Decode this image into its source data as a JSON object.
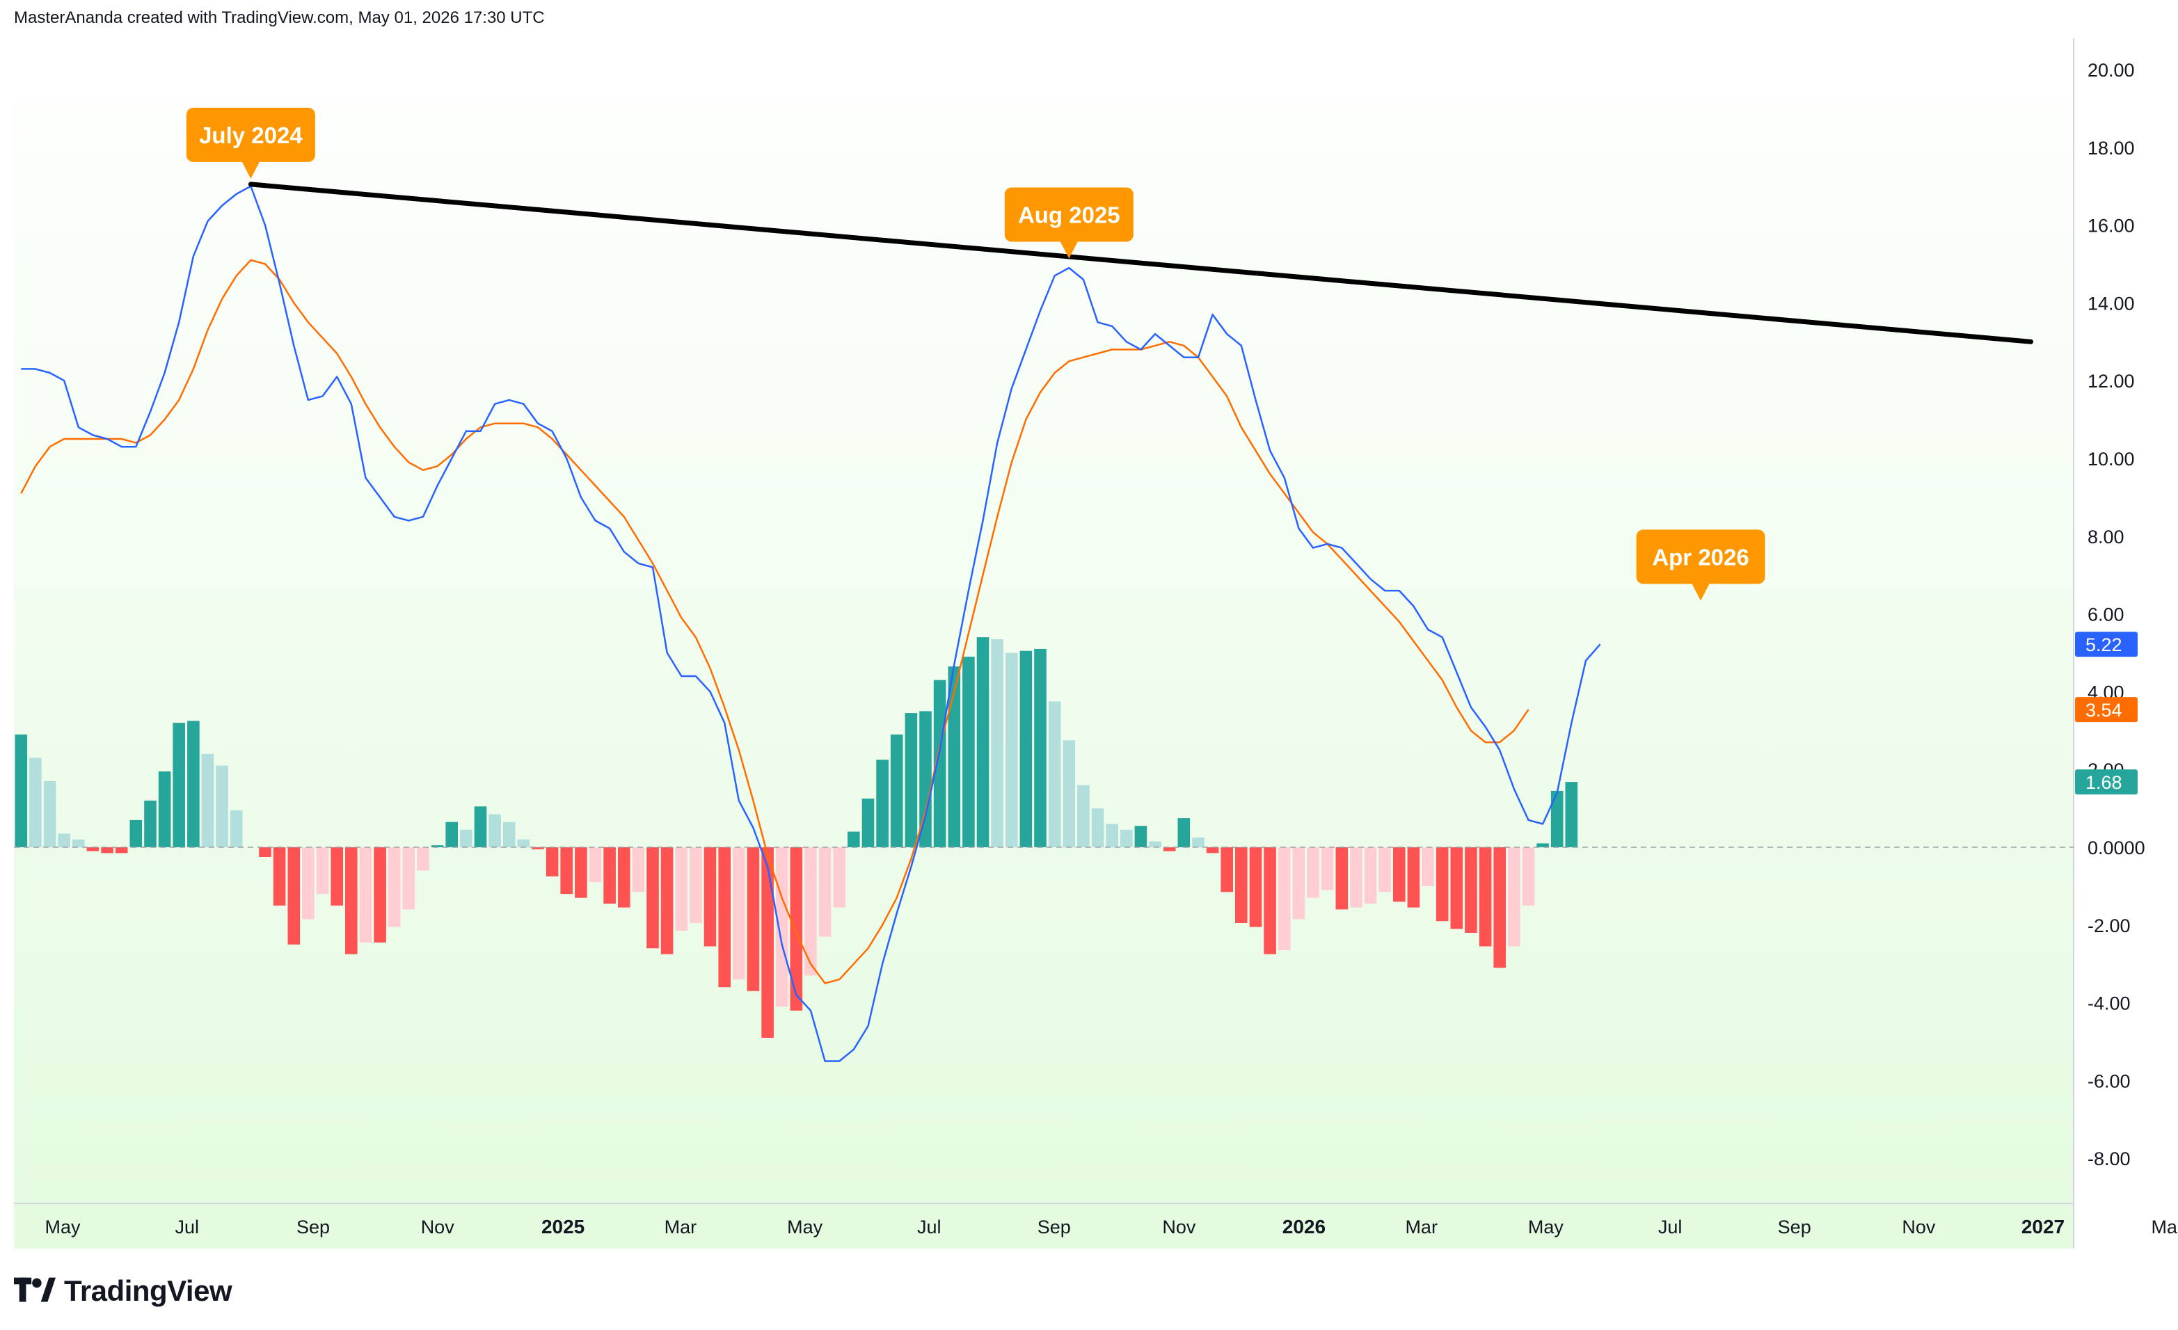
{
  "header": {
    "attribution": "MasterAnanda created with TradingView.com, May 01, 2026 17:30 UTC"
  },
  "brand": {
    "logo_text": "TradingView"
  },
  "colors": {
    "macd_line": "#2962ff",
    "signal_line": "#ff6d00",
    "hist_pos_grow": "#26a69a",
    "hist_pos_fall": "#b2dfdb",
    "hist_neg_grow": "#ff5252",
    "hist_neg_fall": "#ffcdd2",
    "callout": "#ff9800",
    "trendline": "#000000",
    "bg_top": "#ffffff",
    "bg_bottom": "#e4fbe0"
  },
  "chart_data": {
    "type": "line",
    "indicator": "MACD",
    "y_ticks": [
      "20.00",
      "18.00",
      "16.00",
      "14.00",
      "12.00",
      "10.00",
      "8.00",
      "6.00",
      "4.00",
      "2.00",
      "0.0000",
      "-2.00",
      "-4.00",
      "-6.00",
      "-8.00"
    ],
    "ylim": [
      -9.2,
      21.4
    ],
    "x_ticks": [
      {
        "label": "May",
        "x": 0.62,
        "bold": false
      },
      {
        "label": "Jul",
        "x": 2.62,
        "bold": false
      },
      {
        "label": "Sep",
        "x": 4.65,
        "bold": false
      },
      {
        "label": "Nov",
        "x": 6.65,
        "bold": false
      },
      {
        "label": "2025",
        "x": 8.67,
        "bold": true
      },
      {
        "label": "Mar",
        "x": 10.56,
        "bold": false
      },
      {
        "label": "May",
        "x": 12.56,
        "bold": false
      },
      {
        "label": "Jul",
        "x": 14.56,
        "bold": false
      },
      {
        "label": "Sep",
        "x": 16.57,
        "bold": false
      },
      {
        "label": "Nov",
        "x": 18.58,
        "bold": false
      },
      {
        "label": "2026",
        "x": 20.59,
        "bold": true
      },
      {
        "label": "Mar",
        "x": 22.48,
        "bold": false
      },
      {
        "label": "May",
        "x": 24.48,
        "bold": false
      },
      {
        "label": "Jul",
        "x": 26.48,
        "bold": false
      },
      {
        "label": "Sep",
        "x": 28.48,
        "bold": false
      },
      {
        "label": "Nov",
        "x": 30.48,
        "bold": false
      },
      {
        "label": "2027",
        "x": 32.48,
        "bold": true
      },
      {
        "label": "Mar",
        "x": 34.48,
        "bold": false
      }
    ],
    "x_start_offset": 0.71,
    "weeks_per_month": 4.33,
    "series": [
      {
        "name": "MACD",
        "color_key": "macd_line",
        "values": [
          12.3,
          12.3,
          12.2,
          12.0,
          10.8,
          10.6,
          10.5,
          10.3,
          10.3,
          11.2,
          12.2,
          13.5,
          15.2,
          16.1,
          16.5,
          16.8,
          17.0,
          16.0,
          14.5,
          12.9,
          11.5,
          11.6,
          12.1,
          11.4,
          9.5,
          9.0,
          8.5,
          8.4,
          8.5,
          9.3,
          10.0,
          10.7,
          10.7,
          11.4,
          11.5,
          11.4,
          10.9,
          10.7,
          10.0,
          9.0,
          8.4,
          8.2,
          7.6,
          7.3,
          7.2,
          5.0,
          4.4,
          4.4,
          4.0,
          3.2,
          1.2,
          0.5,
          -0.5,
          -2.5,
          -3.8,
          -4.2,
          -5.5,
          -5.5,
          -5.2,
          -4.6,
          -3.0,
          -1.7,
          -0.5,
          0.8,
          2.5,
          4.7,
          6.6,
          8.4,
          10.4,
          11.8,
          12.8,
          13.8,
          14.7,
          14.9,
          14.6,
          13.5,
          13.4,
          13.0,
          12.8,
          13.2,
          12.9,
          12.6,
          12.6,
          13.7,
          13.2,
          12.9,
          11.5,
          10.2,
          9.5,
          8.2,
          7.7,
          7.8,
          7.7,
          7.3,
          6.9,
          6.6,
          6.6,
          6.2,
          5.6,
          5.4,
          4.5,
          3.6,
          3.1,
          2.5,
          1.5,
          0.7,
          0.6,
          1.4,
          3.2,
          4.8,
          5.22
        ]
      },
      {
        "name": "Signal",
        "color_key": "signal_line",
        "values": [
          9.1,
          9.8,
          10.3,
          10.5,
          10.5,
          10.5,
          10.5,
          10.5,
          10.4,
          10.6,
          11.0,
          11.5,
          12.3,
          13.3,
          14.1,
          14.7,
          15.1,
          15.0,
          14.6,
          14.0,
          13.5,
          13.1,
          12.7,
          12.1,
          11.4,
          10.8,
          10.3,
          9.9,
          9.7,
          9.8,
          10.1,
          10.5,
          10.8,
          10.9,
          10.9,
          10.9,
          10.8,
          10.5,
          10.1,
          9.7,
          9.3,
          8.9,
          8.5,
          7.9,
          7.3,
          6.6,
          5.9,
          5.4,
          4.6,
          3.6,
          2.5,
          1.2,
          -0.2,
          -1.3,
          -2.2,
          -3.0,
          -3.5,
          -3.4,
          -3.0,
          -2.6,
          -2.0,
          -1.3,
          -0.3,
          0.9,
          2.6,
          4.0,
          5.5,
          7.0,
          8.5,
          9.9,
          11.0,
          11.7,
          12.2,
          12.5,
          12.6,
          12.7,
          12.8,
          12.8,
          12.8,
          12.9,
          13.0,
          12.9,
          12.6,
          12.1,
          11.6,
          10.8,
          10.2,
          9.6,
          9.1,
          8.6,
          8.1,
          7.8,
          7.4,
          7.0,
          6.6,
          6.2,
          5.8,
          5.3,
          4.8,
          4.3,
          3.6,
          3.0,
          2.7,
          2.7,
          3.0,
          3.54
        ]
      },
      {
        "name": "Histogram",
        "type": "bar",
        "values": [
          2.9,
          2.3,
          1.7,
          0.35,
          0.2,
          -0.1,
          -0.15,
          -0.15,
          0.7,
          1.2,
          1.95,
          3.2,
          3.25,
          2.4,
          2.1,
          0.95,
          0,
          -0.25,
          -1.5,
          -2.5,
          -1.85,
          -1.2,
          -1.5,
          -2.75,
          -2.45,
          -2.45,
          -2.05,
          -1.6,
          -0.6,
          0.05,
          0.65,
          0.45,
          1.05,
          0.85,
          0.65,
          0.2,
          -0.05,
          -0.75,
          -1.2,
          -1.3,
          -0.9,
          -1.45,
          -1.55,
          -1.15,
          -2.6,
          -2.75,
          -2.15,
          -1.95,
          -2.55,
          -3.6,
          -3.4,
          -3.7,
          -4.9,
          -4.1,
          -4.2,
          -3.3,
          -2.3,
          -1.55,
          0.4,
          1.25,
          2.25,
          2.9,
          3.45,
          3.5,
          4.3,
          4.65,
          4.9,
          5.4,
          5.35,
          5.0,
          5.05,
          5.1,
          3.75,
          2.75,
          1.6,
          1.0,
          0.6,
          0.45,
          0.55,
          0.15,
          -0.1,
          0.75,
          0.25,
          -0.15,
          -1.15,
          -1.95,
          -2.05,
          -2.75,
          -2.65,
          -1.85,
          -1.3,
          -1.1,
          -1.6,
          -1.55,
          -1.45,
          -1.15,
          -1.4,
          -1.55,
          -1.0,
          -1.9,
          -2.1,
          -2.2,
          -2.55,
          -3.1,
          -2.55,
          -1.5,
          0.1,
          1.45,
          1.68
        ]
      }
    ],
    "trendline": {
      "from": {
        "x": 16,
        "y": 17.05
      },
      "to": {
        "x": 140,
        "y": 13.0
      }
    },
    "annotations": [
      {
        "text": "July 2024",
        "x": 16,
        "y": 17.05
      },
      {
        "text": "Aug 2025",
        "x": 73,
        "y": 15.0
      },
      {
        "text": "Apr 2026",
        "x": 117,
        "y": 6.2
      }
    ],
    "last_value_badges": [
      {
        "text": "5.22",
        "value": 5.22,
        "color_key": "macd_line"
      },
      {
        "text": "3.54",
        "value": 3.54,
        "color_key": "signal_line"
      },
      {
        "text": "1.68",
        "value": 1.68,
        "color_key": "hist_pos_grow"
      }
    ],
    "zero_line": true,
    "grid": false
  }
}
